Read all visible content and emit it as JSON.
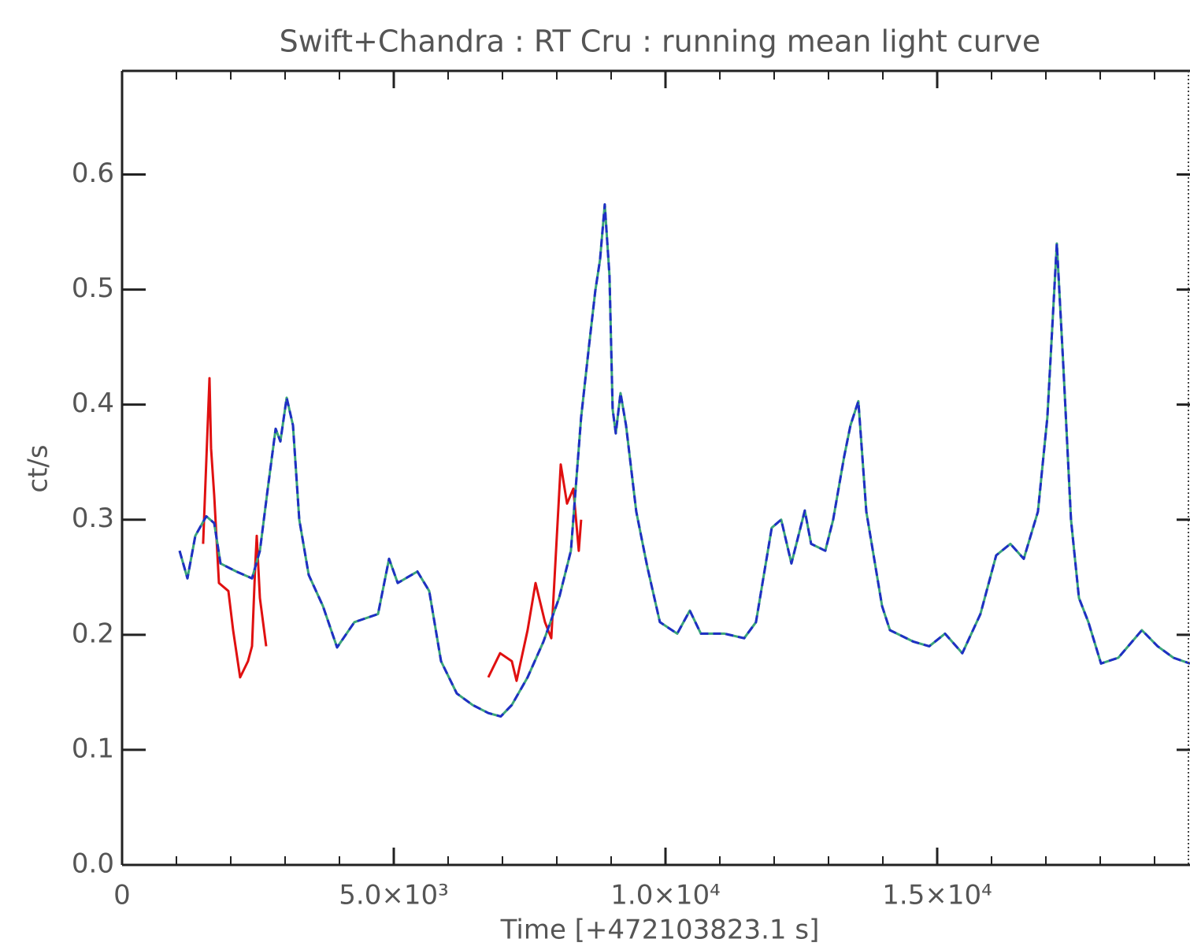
{
  "chart_data": {
    "type": "line",
    "title": "Swift+Chandra : RT Cru : running mean light curve",
    "x_label": "Time [+472103823.1 s]",
    "y_label": "ct/s",
    "xlim": [
      0,
      19650
    ],
    "ylim": [
      0,
      0.69
    ],
    "xticks": [
      {
        "value": 0,
        "label": "0"
      },
      {
        "value": 5000,
        "label": "5.0×10³"
      },
      {
        "value": 10000,
        "label": "1.0×10⁴"
      },
      {
        "value": 15000,
        "label": "1.5×10⁴"
      }
    ],
    "xminorticks": [
      1000,
      2000,
      3000,
      4000,
      6000,
      7000,
      8000,
      9000,
      11000,
      12000,
      13000,
      14000,
      16000,
      17000,
      18000,
      19000
    ],
    "yticks": [
      {
        "value": 0,
        "label": "0.0"
      },
      0.1,
      0.2,
      0.3,
      0.4,
      0.5,
      0.6
    ],
    "series": [
      {
        "color": "#e01010",
        "dash": false,
        "x": [
          1492,
          1608,
          1637,
          1695,
          1782,
          1956,
          2043,
          2173,
          2318,
          2391,
          2449,
          2478,
          2536,
          2652,
          null,
          6739,
          6956,
          7173,
          7260,
          7463,
          7608,
          7782,
          7898,
          8072,
          8188,
          8304,
          8405,
          8448
        ],
        "values": [
          0.279,
          0.423,
          0.362,
          0.321,
          0.245,
          0.238,
          0.204,
          0.163,
          0.177,
          0.19,
          0.259,
          0.286,
          0.232,
          0.19,
          null,
          0.163,
          0.184,
          0.177,
          0.16,
          0.204,
          0.245,
          0.211,
          0.197,
          0.348,
          0.314,
          0.327,
          0.273,
          0.3
        ]
      },
      {
        "color": "#3aa57a",
        "dash": false,
        "x": [
          1058,
          1203,
          1348,
          1550,
          1695,
          1811,
          2101,
          2391,
          2536,
          2681,
          2826,
          2913,
          3029,
          3145,
          3261,
          3435,
          3696,
          3956,
          4275,
          4710,
          4913,
          5072,
          5435,
          5652,
          5869,
          6159,
          6449,
          6739,
          6970,
          7173,
          7463,
          7753,
          8042,
          8260,
          8448,
          8593,
          8709,
          8796,
          8883,
          8970,
          9028,
          9086,
          9173,
          9274,
          9462,
          9665,
          9897,
          10216,
          10448,
          10651,
          11086,
          11448,
          11665,
          11955,
          12129,
          12318,
          12564,
          12680,
          12941,
          13086,
          13289,
          13405,
          13550,
          13695,
          13985,
          14130,
          14564,
          14854,
          15144,
          15463,
          15796,
          16086,
          16347,
          16593,
          16854,
          17028,
          17202,
          17318,
          17463,
          17608,
          17782,
          18014,
          18333,
          18767,
          19057,
          19347,
          19650
        ],
        "values": [
          0.273,
          0.249,
          0.286,
          0.303,
          0.297,
          0.262,
          0.255,
          0.249,
          0.273,
          0.327,
          0.379,
          0.368,
          0.406,
          0.382,
          0.3,
          0.252,
          0.225,
          0.189,
          0.211,
          0.218,
          0.266,
          0.245,
          0.255,
          0.238,
          0.177,
          0.149,
          0.139,
          0.132,
          0.129,
          0.139,
          0.163,
          0.194,
          0.232,
          0.273,
          0.389,
          0.451,
          0.499,
          0.526,
          0.574,
          0.512,
          0.396,
          0.375,
          0.41,
          0.382,
          0.307,
          0.259,
          0.211,
          0.201,
          0.221,
          0.201,
          0.201,
          0.197,
          0.211,
          0.293,
          0.3,
          0.262,
          0.308,
          0.279,
          0.273,
          0.3,
          0.355,
          0.382,
          0.403,
          0.307,
          0.225,
          0.204,
          0.194,
          0.19,
          0.201,
          0.184,
          0.218,
          0.269,
          0.279,
          0.266,
          0.307,
          0.389,
          0.54,
          0.437,
          0.3,
          0.232,
          0.211,
          0.175,
          0.18,
          0.204,
          0.19,
          0.18,
          0.175
        ]
      },
      {
        "color": "#1f2fc4",
        "dash": true,
        "x": [
          1058,
          1203,
          1348,
          1550,
          1695,
          1811,
          2101,
          2391,
          2536,
          2681,
          2826,
          2913,
          3029,
          3145,
          3261,
          3435,
          3696,
          3956,
          4275,
          4710,
          4913,
          5072,
          5435,
          5652,
          5869,
          6159,
          6449,
          6739,
          6970,
          7173,
          7463,
          7753,
          8042,
          8260,
          8448,
          8593,
          8709,
          8796,
          8883,
          8970,
          9028,
          9086,
          9173,
          9274,
          9462,
          9665,
          9897,
          10216,
          10448,
          10651,
          11086,
          11448,
          11665,
          11955,
          12129,
          12318,
          12564,
          12680,
          12941,
          13086,
          13289,
          13405,
          13550,
          13695,
          13985,
          14130,
          14564,
          14854,
          15144,
          15463,
          15796,
          16086,
          16347,
          16593,
          16854,
          17028,
          17202,
          17318,
          17463,
          17608,
          17782,
          18014,
          18333,
          18767,
          19057,
          19347,
          19650
        ],
        "values": [
          0.273,
          0.249,
          0.286,
          0.303,
          0.297,
          0.262,
          0.255,
          0.249,
          0.273,
          0.327,
          0.379,
          0.368,
          0.406,
          0.382,
          0.3,
          0.252,
          0.225,
          0.189,
          0.211,
          0.218,
          0.266,
          0.245,
          0.255,
          0.238,
          0.177,
          0.149,
          0.139,
          0.132,
          0.129,
          0.139,
          0.163,
          0.194,
          0.232,
          0.273,
          0.389,
          0.451,
          0.499,
          0.526,
          0.574,
          0.512,
          0.396,
          0.375,
          0.41,
          0.382,
          0.307,
          0.259,
          0.211,
          0.201,
          0.221,
          0.201,
          0.201,
          0.197,
          0.211,
          0.293,
          0.3,
          0.262,
          0.308,
          0.279,
          0.273,
          0.3,
          0.355,
          0.382,
          0.403,
          0.307,
          0.225,
          0.204,
          0.194,
          0.19,
          0.201,
          0.184,
          0.218,
          0.269,
          0.279,
          0.266,
          0.307,
          0.389,
          0.54,
          0.437,
          0.3,
          0.232,
          0.211,
          0.175,
          0.18,
          0.204,
          0.19,
          0.18,
          0.175
        ]
      }
    ]
  }
}
